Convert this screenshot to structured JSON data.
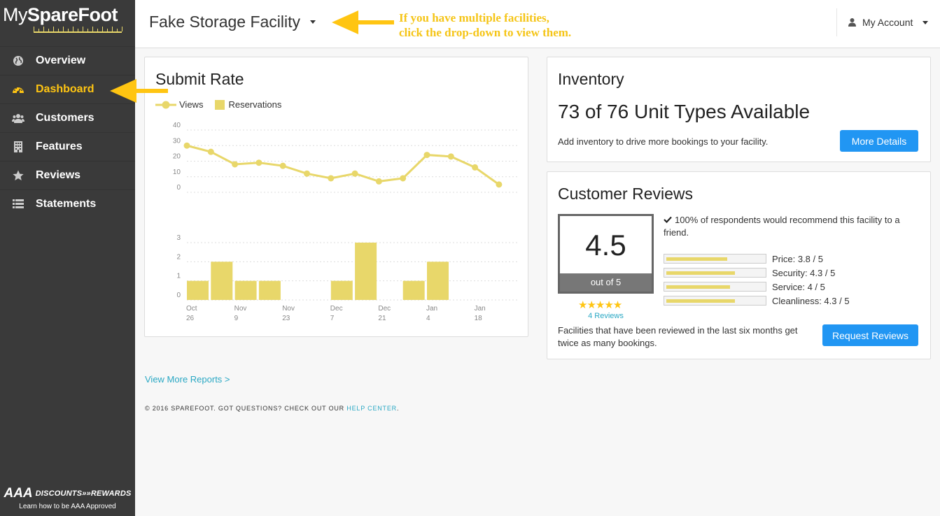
{
  "brand": {
    "my": "My",
    "sparefoot": "SpareFoot"
  },
  "colors": {
    "accent": "#ffc512",
    "button": "#2196f3",
    "chart": "#e8d76a",
    "link": "#2aa8c4",
    "sidebar": "#3a3a3a"
  },
  "sidebar": {
    "items": [
      {
        "label": "Overview",
        "icon": "globe-icon",
        "active": false
      },
      {
        "label": "Dashboard",
        "icon": "dashboard-gauge-icon",
        "active": true
      },
      {
        "label": "Customers",
        "icon": "users-icon",
        "active": false
      },
      {
        "label": "Features",
        "icon": "building-icon",
        "active": false
      },
      {
        "label": "Reviews",
        "icon": "star-icon",
        "active": false
      },
      {
        "label": "Statements",
        "icon": "list-icon",
        "active": false
      }
    ],
    "aaa": {
      "logo": "AAA",
      "title": "DISCOUNTS»»REWARDS",
      "learn": "Learn how to be AAA Approved"
    }
  },
  "header": {
    "facility": "Fake Storage Facility",
    "annotation_line1": "If you have multiple facilities,",
    "annotation_line2": "click the drop-down to view them.",
    "account": "My Account",
    "account_icon": "user-icon"
  },
  "submit_rate": {
    "title": "Submit Rate",
    "legend_views": "Views",
    "legend_reservations": "Reservations"
  },
  "chart_data": {
    "type": "line",
    "title": "Submit Rate",
    "series_names": [
      "Views",
      "Reservations"
    ],
    "x_labels": [
      [
        "Oct",
        "26"
      ],
      [
        "Nov",
        "9"
      ],
      [
        "Nov",
        "23"
      ],
      [
        "Dec",
        "7"
      ],
      [
        "Dec",
        "21"
      ],
      [
        "Jan",
        "4"
      ],
      [
        "Jan",
        "18"
      ]
    ],
    "views": {
      "type": "line",
      "y_ticks": [
        40,
        30,
        20,
        10,
        0
      ],
      "ylim": [
        0,
        40
      ],
      "values": [
        30,
        26,
        18,
        19,
        17,
        12,
        9,
        12,
        7,
        9,
        24,
        23,
        16,
        5
      ]
    },
    "reservations": {
      "type": "bar",
      "y_ticks": [
        3,
        2,
        1,
        0
      ],
      "ylim": [
        0,
        3
      ],
      "values": [
        1,
        2,
        1,
        1,
        0,
        0,
        1,
        3,
        0,
        1,
        2,
        0,
        0,
        0
      ]
    }
  },
  "inventory": {
    "title": "Inventory",
    "count": "73 of 76 Unit Types Available",
    "text": "Add inventory to drive more bookings to your facility.",
    "button": "More Details"
  },
  "reviews": {
    "title": "Customer Reviews",
    "score": "4.5",
    "out_of": "out of 5",
    "stars": "★★★★★",
    "review_count": "4 Reviews",
    "recommend": "100% of respondents would recommend this facility to a friend.",
    "ratings": [
      {
        "label": "Price:  3.8 / 5",
        "value": 3.8
      },
      {
        "label": "Security:  4.3 / 5",
        "value": 4.3
      },
      {
        "label": "Service:  4 / 5",
        "value": 4.0
      },
      {
        "label": "Cleanliness:  4.3 / 5",
        "value": 4.3
      }
    ],
    "note": "Facilities that have been reviewed in the last six months get twice as many bookings.",
    "button": "Request Reviews"
  },
  "links": {
    "view_more": "View More Reports >"
  },
  "footer": {
    "text": "© 2016 SPAREFOOT. GOT QUESTIONS? CHECK OUT OUR ",
    "link": "HELP CENTER",
    "end": "."
  }
}
